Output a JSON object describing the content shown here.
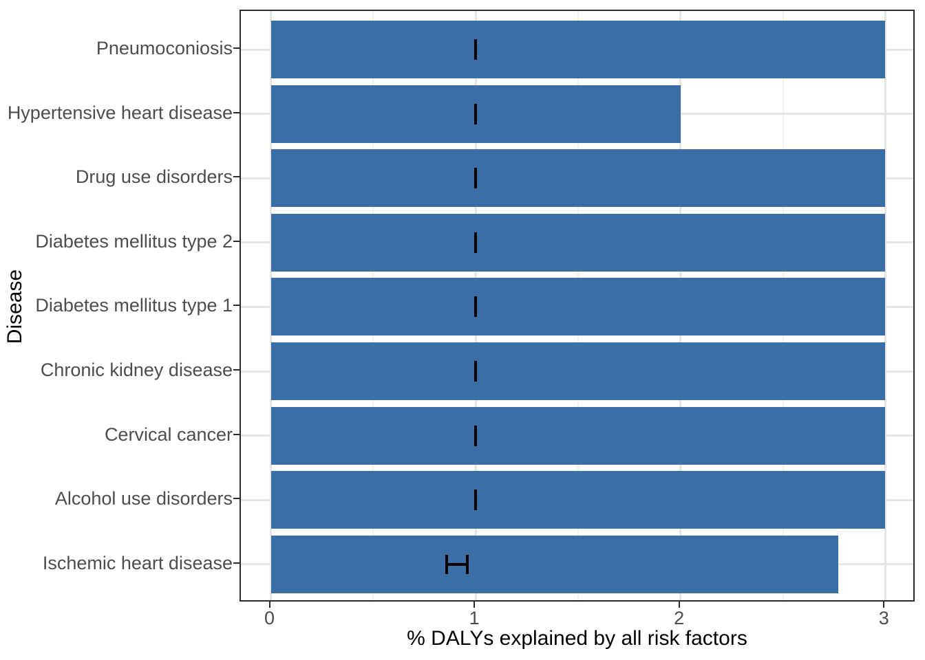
{
  "figure": {
    "x_axis_title": "% DALYs explained by all risk factors",
    "y_axis_title": "Disease"
  },
  "chart_data": {
    "type": "bar",
    "orientation": "horizontal",
    "title": "",
    "xlabel": "% DALYs explained by all risk factors",
    "ylabel": "Disease",
    "xlim": [
      0,
      3
    ],
    "x_major_ticks": [
      0,
      1,
      2,
      3
    ],
    "x_minor_gridlines": [
      0.5,
      1.5,
      2.5
    ],
    "grid": true,
    "legend": "none",
    "bar_color": "#3a6ea5",
    "errorbar_color": "#000000",
    "categories": [
      "Pneumoconiosis",
      "Hypertensive heart disease",
      "Drug use disorders",
      "Diabetes mellitus type 2",
      "Diabetes mellitus type 1",
      "Chronic kidney disease",
      "Cervical cancer",
      "Alcohol use disorders",
      "Ischemic heart disease"
    ],
    "values": [
      3.0,
      2.0,
      3.0,
      3.0,
      3.0,
      3.0,
      3.0,
      3.0,
      2.77
    ],
    "error_bars": [
      {
        "low": 1.0,
        "high": 1.0
      },
      {
        "low": 1.0,
        "high": 1.0
      },
      {
        "low": 1.0,
        "high": 1.0
      },
      {
        "low": 1.0,
        "high": 1.0
      },
      {
        "low": 1.0,
        "high": 1.0
      },
      {
        "low": 1.0,
        "high": 1.0
      },
      {
        "low": 1.0,
        "high": 1.0
      },
      {
        "low": 1.0,
        "high": 1.0
      },
      {
        "low": 0.86,
        "high": 0.96
      }
    ]
  },
  "colors": {
    "bar": "#3a6ea5",
    "grid_major": "#e5e5e5",
    "grid_minor": "#f2f2f2",
    "panel_border": "#2b2b2b",
    "tick_text": "#4d4d4d",
    "title_text": "#000000"
  }
}
